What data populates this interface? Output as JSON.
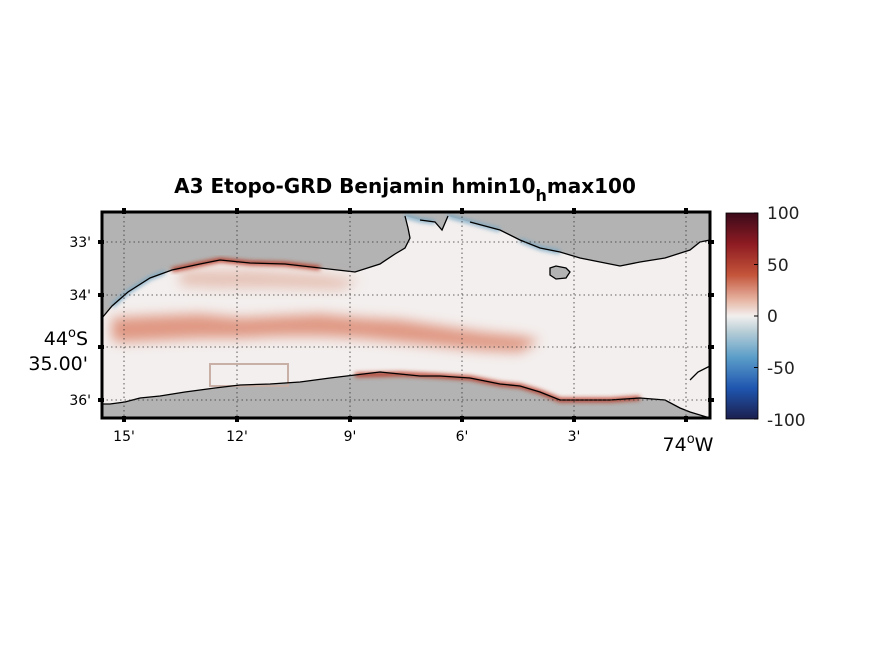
{
  "figure": {
    "title_main": "A3 Etopo-GRD Benjamin hmin10",
    "title_sub": "h",
    "title_tail": "max100"
  },
  "map": {
    "lon_ticks": [
      "15'",
      "12'",
      "9'",
      "6'",
      "3'"
    ],
    "lon_main_deg": "74",
    "lon_main_deg_sym": "o",
    "lon_main_hemi": "W",
    "lat_ticks": [
      "33'",
      "34'",
      "36'"
    ],
    "lat_main_deg": "44",
    "lat_main_deg_sym": "o",
    "lat_main_hemi": "S",
    "lat_main_min": "35.00'",
    "grid": "dotted",
    "land_color": "#b3b3b3",
    "coast_color": "#000000"
  },
  "colorbar": {
    "ticks": [
      "100",
      "50",
      "0",
      "-50",
      "-100"
    ],
    "range": [
      -100,
      100
    ],
    "colormap": "balance (blue-white-red)",
    "colors": [
      "#3b0a1a",
      "#a3281d",
      "#d98a6c",
      "#f2ecea",
      "#a6c4d1",
      "#2a6fb8",
      "#1c1f4e"
    ]
  }
}
